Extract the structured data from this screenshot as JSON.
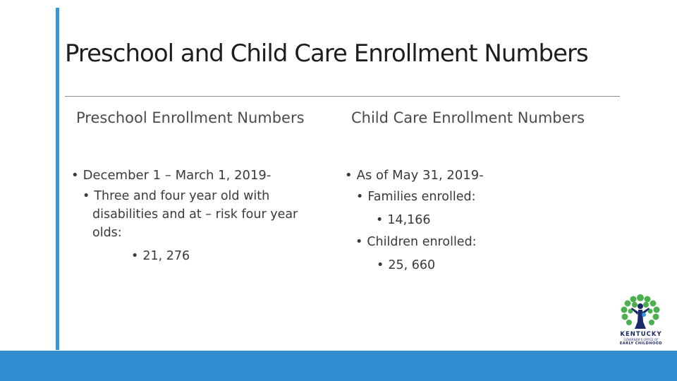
{
  "slide": {
    "title": "Preschool and Child Care Enrollment Numbers",
    "left": {
      "heading": "Preschool Enrollment Numbers",
      "date_line": "December 1 – March 1, 2019-",
      "desc_line1": "Three and four year old with",
      "desc_line2": "disabilities and at – risk four year",
      "desc_line3": "olds:",
      "value": "21, 276"
    },
    "right": {
      "heading": "Child Care Enrollment Numbers",
      "date_line": "As of May 31, 2019-",
      "families_label": "Families enrolled:",
      "families_value": "14,166",
      "children_label": "Children enrolled:",
      "children_value": "25, 660"
    },
    "logo": {
      "name": "KENTUCKY",
      "line1": "GOVERNOR'S OFFICE OF",
      "line2": "EARLY CHILDHOOD"
    }
  },
  "colors": {
    "accent": "#2f9ad6",
    "band": "#2f8fd1",
    "logo_green": "#4caf50",
    "logo_navy": "#1c2a6b"
  }
}
